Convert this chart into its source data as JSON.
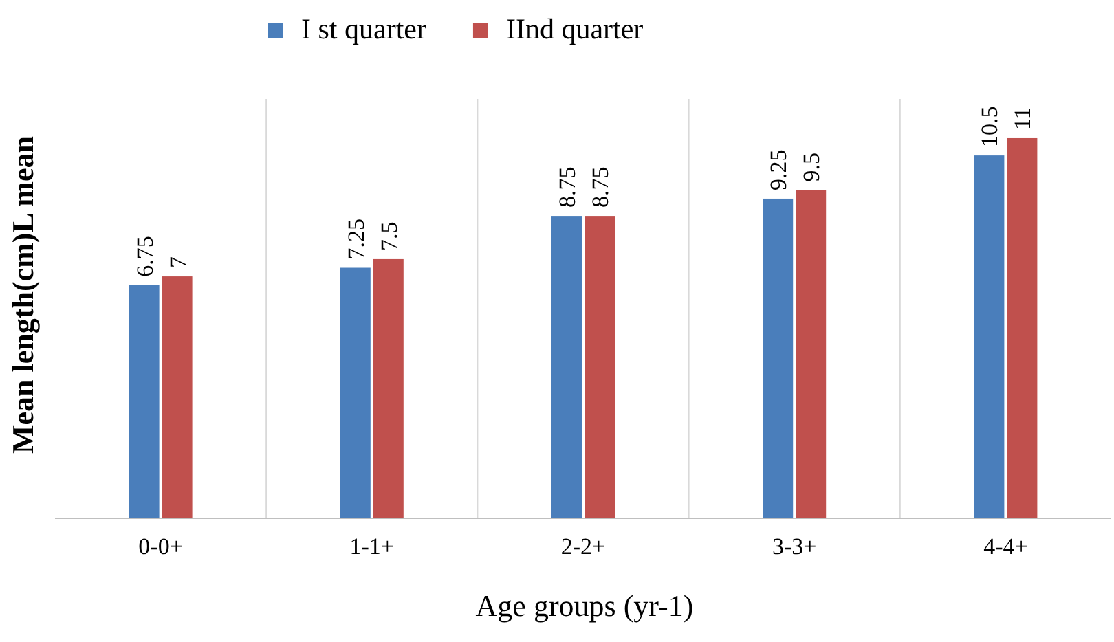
{
  "chart_data": {
    "type": "bar",
    "xlabel": "Age groups (yr-1)",
    "ylabel": "Mean length(cm)L mean",
    "categories": [
      "0-0+",
      "1-1+",
      "2-2+",
      "3-3+",
      "4-4+"
    ],
    "series": [
      {
        "name": "I st quarter",
        "color": "#4a7ebb",
        "values": [
          6.75,
          7.25,
          8.75,
          9.25,
          10.5
        ]
      },
      {
        "name": "IInd quarter",
        "color": "#c0504d",
        "values": [
          7,
          7.5,
          8.75,
          9.5,
          11
        ]
      }
    ],
    "data_labels": true,
    "grid": "x",
    "legend": "top"
  }
}
